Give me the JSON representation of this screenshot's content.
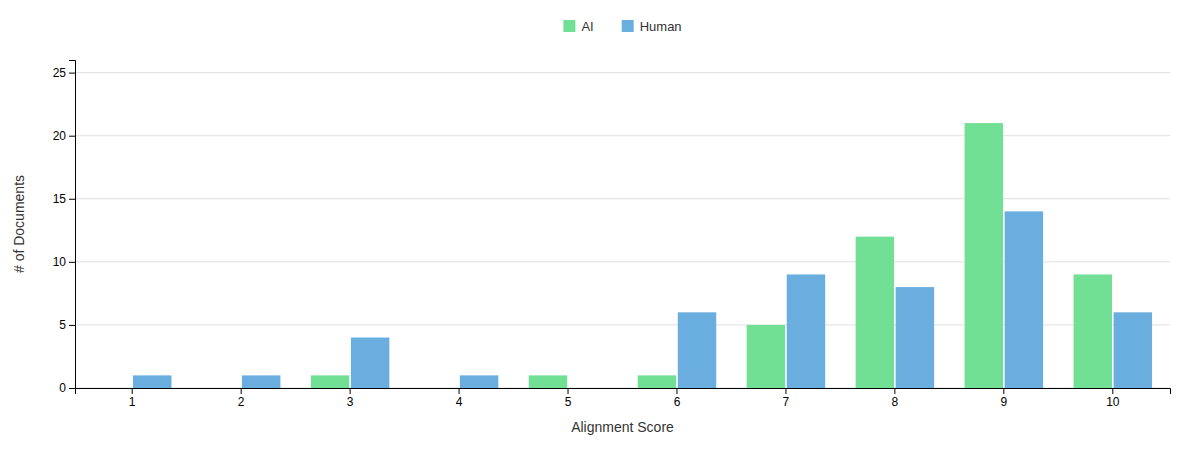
{
  "chart_data": {
    "type": "bar",
    "categories": [
      1,
      2,
      3,
      4,
      5,
      6,
      7,
      8,
      9,
      10
    ],
    "series": [
      {
        "name": "AI",
        "color": "#72E094",
        "values": [
          0,
          0,
          1,
          0,
          1,
          1,
          5,
          12,
          21,
          9
        ]
      },
      {
        "name": "Human",
        "color": "#6AAEE0",
        "values": [
          1,
          1,
          4,
          1,
          0,
          6,
          9,
          8,
          14,
          6
        ]
      }
    ],
    "xlabel": "Alignment Score",
    "ylabel": "# of Documents",
    "ylim": [
      0,
      26
    ],
    "yticks": [
      0,
      5,
      10,
      15,
      20,
      25
    ],
    "grid": true,
    "legend": "top"
  }
}
